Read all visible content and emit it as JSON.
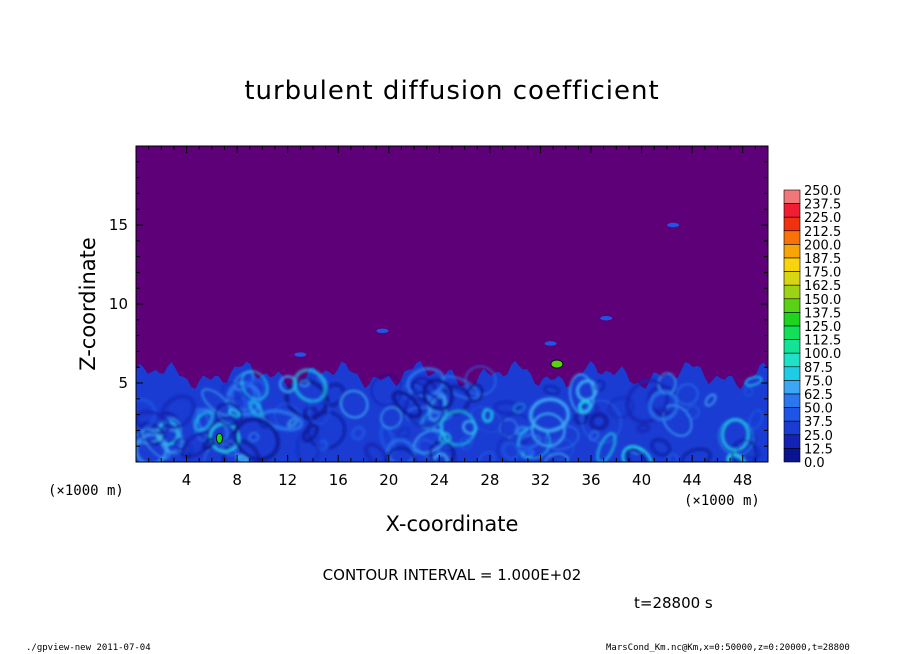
{
  "figure": {
    "title": "turbulent diffusion coefficient",
    "contour_interval": "CONTOUR INTERVAL = 1.000E+02",
    "time_stamp": "t=28800 s",
    "footer_left": "./gpview-new   2011-07-04",
    "footer_right": "MarsCond_Km.nc@Km,x=0:50000,z=0:20000,t=28800"
  },
  "chart_data": {
    "type": "heatmap",
    "title": "turbulent diffusion coefficient",
    "xlabel": "X-coordinate",
    "ylabel": "Z-coordinate",
    "x_multiplier": "(×1000 m)",
    "y_multiplier": "(×1000 m)",
    "xlim": [
      0,
      50
    ],
    "ylim": [
      0,
      20
    ],
    "x_ticks": [
      "4",
      "8",
      "12",
      "16",
      "20",
      "24",
      "28",
      "32",
      "36",
      "40",
      "44",
      "48"
    ],
    "y_ticks": [
      "5",
      "10",
      "15"
    ],
    "colorbar": {
      "labels": [
        "250.0",
        "237.5",
        "225.0",
        "212.5",
        "200.0",
        "187.5",
        "175.0",
        "162.5",
        "150.0",
        "137.5",
        "125.0",
        "112.5",
        "100.0",
        "87.5",
        "75.0",
        "62.5",
        "50.0",
        "37.5",
        "25.0",
        "12.5",
        "0.0"
      ],
      "colors": [
        "#5e0078",
        "#0a1490",
        "#1423b4",
        "#1a3cd2",
        "#1e55e6",
        "#2a78f0",
        "#3ca8f4",
        "#1ecce6",
        "#20e0c8",
        "#14e296",
        "#12e05a",
        "#1ed41c",
        "#5ad214",
        "#9ed214",
        "#d8d614",
        "#f8d40c",
        "#f8a406",
        "#f87206",
        "#f03210",
        "#f01e32",
        "#f07878"
      ]
    },
    "field": {
      "background_value": 0.0,
      "boundary_layer_top_km": 5.5,
      "max_value_approx": 100.0,
      "isolated_puffs": [
        {
          "x": 13,
          "z": 6.8
        },
        {
          "x": 19.5,
          "z": 8.3
        },
        {
          "x": 32.8,
          "z": 7.5
        },
        {
          "x": 37.2,
          "z": 9.1
        },
        {
          "x": 42.5,
          "z": 15.0
        }
      ]
    }
  }
}
